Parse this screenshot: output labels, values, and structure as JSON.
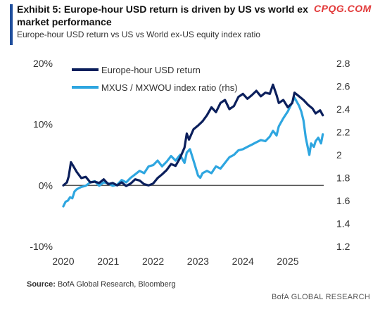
{
  "header": {
    "title_line1": "Exhibit 5: Europe-hour USD return is driven by US vs world ex",
    "title_line2": "market performance",
    "subtitle": "Europe-hour USD return vs US vs World ex-US equity index ratio",
    "watermark": "CPQG.COM"
  },
  "footer": {
    "source_label": "Source:",
    "source_text": "BofA Global Research, Bloomberg",
    "brand": "BofA GLOBAL RESEARCH"
  },
  "colors": {
    "series1": "#0b1f5c",
    "series2": "#2ea6e0",
    "zero_line": "#555555"
  },
  "chart_data": {
    "type": "line",
    "title": "",
    "xlabel": "",
    "ylabel": "",
    "x_ticks": [
      "2020",
      "2021",
      "2022",
      "2023",
      "2024",
      "2025"
    ],
    "y_left": {
      "ticks": [
        "20%",
        "10%",
        "0%",
        "-10%"
      ],
      "range": [
        -10,
        20
      ],
      "unit": "%"
    },
    "y_right": {
      "ticks": [
        "2.8",
        "2.6",
        "2.4",
        "2.2",
        "2",
        "1.8",
        "1.6",
        "1.4",
        "1.2"
      ],
      "range": [
        1.2,
        2.8
      ]
    },
    "legend_placement": "top-left",
    "series": [
      {
        "name": "Europe-hour USD return",
        "axis": "left",
        "points": [
          [
            2020.0,
            0.0
          ],
          [
            2020.08,
            0.5
          ],
          [
            2020.12,
            1.5
          ],
          [
            2020.17,
            3.8
          ],
          [
            2020.22,
            3.2
          ],
          [
            2020.3,
            2.2
          ],
          [
            2020.4,
            1.2
          ],
          [
            2020.5,
            1.4
          ],
          [
            2020.6,
            0.5
          ],
          [
            2020.7,
            0.6
          ],
          [
            2020.8,
            0.4
          ],
          [
            2020.9,
            1.0
          ],
          [
            2021.0,
            0.2
          ],
          [
            2021.1,
            0.4
          ],
          [
            2021.2,
            0.0
          ],
          [
            2021.3,
            0.5
          ],
          [
            2021.4,
            -0.1
          ],
          [
            2021.5,
            0.3
          ],
          [
            2021.6,
            1.0
          ],
          [
            2021.7,
            0.8
          ],
          [
            2021.8,
            0.2
          ],
          [
            2021.9,
            0.0
          ],
          [
            2022.0,
            0.3
          ],
          [
            2022.1,
            1.2
          ],
          [
            2022.2,
            1.8
          ],
          [
            2022.3,
            2.5
          ],
          [
            2022.4,
            3.5
          ],
          [
            2022.5,
            3.2
          ],
          [
            2022.6,
            4.5
          ],
          [
            2022.7,
            6.2
          ],
          [
            2022.75,
            8.5
          ],
          [
            2022.8,
            7.5
          ],
          [
            2022.9,
            9.2
          ],
          [
            2023.0,
            9.8
          ],
          [
            2023.1,
            10.5
          ],
          [
            2023.2,
            11.5
          ],
          [
            2023.3,
            12.8
          ],
          [
            2023.4,
            12.0
          ],
          [
            2023.5,
            13.5
          ],
          [
            2023.6,
            14.0
          ],
          [
            2023.7,
            12.5
          ],
          [
            2023.8,
            13.0
          ],
          [
            2023.9,
            14.5
          ],
          [
            2024.0,
            15.0
          ],
          [
            2024.1,
            14.2
          ],
          [
            2024.2,
            14.8
          ],
          [
            2024.3,
            15.5
          ],
          [
            2024.4,
            14.6
          ],
          [
            2024.5,
            15.2
          ],
          [
            2024.6,
            15.0
          ],
          [
            2024.67,
            16.5
          ],
          [
            2024.75,
            14.8
          ],
          [
            2024.8,
            13.5
          ],
          [
            2024.9,
            14.0
          ],
          [
            2025.0,
            12.8
          ],
          [
            2025.1,
            13.5
          ],
          [
            2025.15,
            15.2
          ],
          [
            2025.25,
            14.6
          ],
          [
            2025.35,
            14.0
          ],
          [
            2025.45,
            13.2
          ],
          [
            2025.55,
            12.6
          ],
          [
            2025.62,
            11.8
          ],
          [
            2025.72,
            12.3
          ],
          [
            2025.78,
            11.5
          ]
        ]
      },
      {
        "name": "MXUS / MXWOU index ratio (rhs)",
        "axis": "right",
        "points": [
          [
            2020.0,
            1.55
          ],
          [
            2020.05,
            1.59
          ],
          [
            2020.1,
            1.6
          ],
          [
            2020.15,
            1.63
          ],
          [
            2020.2,
            1.62
          ],
          [
            2020.25,
            1.68
          ],
          [
            2020.3,
            1.7
          ],
          [
            2020.4,
            1.72
          ],
          [
            2020.5,
            1.73
          ],
          [
            2020.6,
            1.76
          ],
          [
            2020.7,
            1.77
          ],
          [
            2020.8,
            1.73
          ],
          [
            2020.9,
            1.76
          ],
          [
            2021.0,
            1.75
          ],
          [
            2021.1,
            1.73
          ],
          [
            2021.2,
            1.74
          ],
          [
            2021.3,
            1.78
          ],
          [
            2021.4,
            1.76
          ],
          [
            2021.5,
            1.8
          ],
          [
            2021.6,
            1.83
          ],
          [
            2021.7,
            1.86
          ],
          [
            2021.8,
            1.84
          ],
          [
            2021.9,
            1.9
          ],
          [
            2022.0,
            1.91
          ],
          [
            2022.1,
            1.95
          ],
          [
            2022.2,
            1.9
          ],
          [
            2022.3,
            1.94
          ],
          [
            2022.4,
            1.99
          ],
          [
            2022.5,
            1.95
          ],
          [
            2022.6,
            2.0
          ],
          [
            2022.7,
            1.93
          ],
          [
            2022.75,
            2.02
          ],
          [
            2022.82,
            2.05
          ],
          [
            2022.9,
            1.95
          ],
          [
            2023.0,
            1.82
          ],
          [
            2023.05,
            1.8
          ],
          [
            2023.1,
            1.84
          ],
          [
            2023.2,
            1.86
          ],
          [
            2023.3,
            1.84
          ],
          [
            2023.4,
            1.9
          ],
          [
            2023.5,
            1.88
          ],
          [
            2023.6,
            1.93
          ],
          [
            2023.7,
            1.98
          ],
          [
            2023.8,
            2.0
          ],
          [
            2023.9,
            2.04
          ],
          [
            2024.0,
            2.05
          ],
          [
            2024.1,
            2.07
          ],
          [
            2024.2,
            2.09
          ],
          [
            2024.3,
            2.11
          ],
          [
            2024.4,
            2.13
          ],
          [
            2024.5,
            2.12
          ],
          [
            2024.6,
            2.16
          ],
          [
            2024.67,
            2.21
          ],
          [
            2024.75,
            2.17
          ],
          [
            2024.8,
            2.25
          ],
          [
            2024.9,
            2.32
          ],
          [
            2025.0,
            2.38
          ],
          [
            2025.1,
            2.46
          ],
          [
            2025.15,
            2.5
          ],
          [
            2025.25,
            2.43
          ],
          [
            2025.3,
            2.38
          ],
          [
            2025.35,
            2.3
          ],
          [
            2025.4,
            2.15
          ],
          [
            2025.48,
            2.0
          ],
          [
            2025.52,
            2.1
          ],
          [
            2025.58,
            2.07
          ],
          [
            2025.62,
            2.12
          ],
          [
            2025.68,
            2.15
          ],
          [
            2025.74,
            2.1
          ],
          [
            2025.78,
            2.18
          ]
        ]
      }
    ]
  }
}
